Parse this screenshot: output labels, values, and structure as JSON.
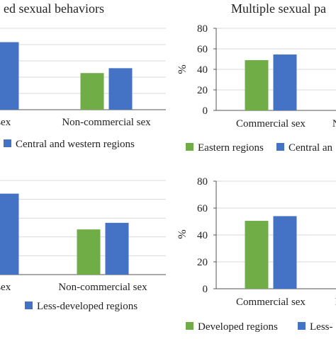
{
  "colors": {
    "green": "#70AD47",
    "blue": "#4472C4",
    "axis": "#555555",
    "grid": "#D9D9D9",
    "text": "#222222"
  },
  "chart_data": [
    {
      "type": "bar",
      "title": "ed sexual behaviors",
      "categories": [
        "rcial sex",
        "Non-commercial sex"
      ],
      "series": [
        {
          "name": "",
          "values": [
            null,
            45
          ]
        },
        {
          "name": "Central and western regions",
          "values": [
            83,
            51
          ]
        }
      ],
      "ylim": [
        0,
        100
      ],
      "grid": true
    },
    {
      "type": "bar",
      "title": "Multiple sexual pa",
      "categories": [
        "Commercial sex",
        "No"
      ],
      "series": [
        {
          "name": "Eastern regions",
          "values": [
            49,
            null
          ]
        },
        {
          "name": "Central an",
          "values": [
            54.5,
            null
          ]
        }
      ],
      "ylim": [
        0,
        80
      ],
      "yticks": [
        0,
        20,
        40,
        60,
        80
      ],
      "ylabel": "%",
      "grid": true
    },
    {
      "type": "bar",
      "title": "",
      "categories": [
        "rcial sex",
        "Non-commercial sex"
      ],
      "series": [
        {
          "name": "",
          "values": [
            null,
            48
          ]
        },
        {
          "name": "Less-developed regions",
          "values": [
            86,
            55
          ]
        }
      ],
      "ylim": [
        0,
        100
      ],
      "grid": true
    },
    {
      "type": "bar",
      "title": "",
      "categories": [
        "Commercial sex",
        "N"
      ],
      "series": [
        {
          "name": "Developed regions",
          "values": [
            50.5,
            null
          ]
        },
        {
          "name": "Less-",
          "values": [
            54,
            null
          ]
        }
      ],
      "ylim": [
        0,
        80
      ],
      "yticks": [
        0,
        20,
        40,
        60,
        80
      ],
      "ylabel": "%",
      "grid": true
    }
  ]
}
